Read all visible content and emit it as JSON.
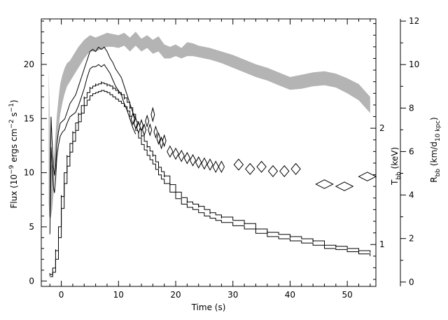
{
  "chart_data": {
    "type": "line",
    "xlabel": "Time (s)",
    "ylabel": "Flux (10",
    "ylabel_exp1": "−9",
    "ylabel_mid": " ergs cm",
    "ylabel_exp2": "−2",
    "ylabel_mid2": " s",
    "ylabel_exp3": "−1",
    "ylabel_end": ")",
    "tbb_label": "T",
    "tbb_sub": "bb",
    "tbb_unit": " (keV)",
    "rbb_label": "R",
    "rbb_sub": "bb",
    "rbb_unit_open": " (km/d",
    "rbb_unit_sub": "10 kpc",
    "rbb_unit_close": ")",
    "xlim": [
      -3.5,
      55
    ],
    "ylim_flux": [
      -0.5,
      24.2
    ],
    "ylim_tbb": [
      0.64,
      2.94
    ],
    "ylim_rbb": [
      -0.2,
      12.1
    ],
    "x_ticks": [
      0,
      10,
      20,
      30,
      40,
      50
    ],
    "flux_ticks": [
      0,
      5,
      10,
      15,
      20
    ],
    "tbb_ticks": [
      1,
      2
    ],
    "rbb_ticks": [
      0,
      2,
      4,
      6,
      8,
      10,
      12
    ],
    "colors": {
      "temperature_band": "#b4b4b4",
      "line": "#000000",
      "background": "#ffffff"
    },
    "flux": {
      "x": [
        -2.0,
        -1.5,
        -1.0,
        -0.5,
        0.0,
        0.5,
        1.0,
        1.5,
        2.0,
        2.5,
        3.0,
        3.5,
        4.0,
        4.5,
        5.0,
        5.5,
        6.0,
        6.5,
        7.0,
        7.5,
        8.0,
        8.5,
        9.0,
        9.5,
        10.0,
        10.5,
        11.0,
        11.5,
        12.0,
        12.5,
        13.0,
        13.5,
        14.0,
        14.5,
        15.0,
        15.5,
        16.0,
        16.5,
        17.0,
        17.5,
        18.0,
        19.0,
        20.0,
        21.0,
        22.0,
        23.0,
        24.0,
        25.0,
        26.0,
        27.0,
        28.0,
        30.0,
        32.0,
        34.0,
        36.0,
        38.0,
        40.0,
        42.0,
        44.0,
        46.0,
        48.0,
        50.0,
        52.0,
        54.0
      ],
      "upper": [
        0.6,
        1.2,
        2.8,
        5.0,
        7.8,
        10.0,
        11.5,
        12.7,
        13.7,
        14.6,
        15.4,
        16.2,
        16.9,
        17.4,
        17.8,
        18.0,
        18.1,
        18.2,
        18.3,
        18.2,
        18.1,
        18.0,
        17.8,
        17.6,
        17.4,
        17.2,
        16.9,
        16.5,
        16.0,
        15.4,
        14.7,
        14.0,
        13.4,
        12.9,
        12.4,
        12.0,
        11.6,
        11.0,
        10.5,
        10.1,
        9.7,
        8.9,
        8.2,
        7.7,
        7.3,
        7.1,
        6.9,
        6.6,
        6.3,
        6.1,
        5.9,
        5.6,
        5.3,
        4.8,
        4.5,
        4.3,
        4.1,
        3.9,
        3.7,
        3.3,
        3.2,
        3.0,
        2.8,
        2.6
      ],
      "lower": [
        0.4,
        0.8,
        2.0,
        4.0,
        6.7,
        9.0,
        10.6,
        11.9,
        12.9,
        13.9,
        14.7,
        15.5,
        16.2,
        16.7,
        17.1,
        17.3,
        17.4,
        17.5,
        17.6,
        17.5,
        17.4,
        17.2,
        17.0,
        16.8,
        16.6,
        16.4,
        16.1,
        15.7,
        15.2,
        14.6,
        13.9,
        13.2,
        12.6,
        12.1,
        11.6,
        11.2,
        10.8,
        10.3,
        9.8,
        9.4,
        9.0,
        8.2,
        7.6,
        7.1,
        6.8,
        6.6,
        6.3,
        6.0,
        5.8,
        5.6,
        5.4,
        5.1,
        4.8,
        4.4,
        4.1,
        3.9,
        3.7,
        3.5,
        3.3,
        3.0,
        2.9,
        2.7,
        2.5,
        2.3
      ]
    },
    "radius": {
      "x": [
        -2.0,
        -1.8,
        -1.6,
        -1.4,
        -1.2,
        -1.0,
        -0.8,
        -0.5,
        -0.2,
        0.2,
        0.6,
        1.0,
        1.5,
        2.0,
        2.5,
        3.0,
        3.5,
        4.0,
        4.5,
        5.0,
        5.5,
        6.0,
        6.5,
        7.0,
        7.5,
        8.0,
        8.5,
        9.0,
        9.5,
        10.0,
        10.5,
        11.0,
        11.5,
        12.0,
        12.5,
        13.0
      ],
      "upper": [
        3.0,
        7.6,
        6.4,
        5.3,
        4.9,
        5.3,
        6.3,
        6.9,
        7.3,
        7.4,
        7.5,
        7.8,
        8.2,
        8.4,
        8.6,
        9.0,
        9.4,
        9.8,
        10.2,
        10.6,
        10.7,
        10.6,
        10.8,
        10.7,
        10.8,
        10.6,
        10.3,
        10.1,
        9.8,
        9.6,
        9.4,
        9.0,
        8.6,
        8.2,
        7.8,
        7.5
      ],
      "lower": [
        2.2,
        6.2,
        5.3,
        4.4,
        4.1,
        4.7,
        5.7,
        6.3,
        6.7,
        6.9,
        7.0,
        7.3,
        7.6,
        7.7,
        7.8,
        8.1,
        8.5,
        8.9,
        9.4,
        9.8,
        9.9,
        9.9,
        10.0,
        9.9,
        10.0,
        9.8,
        9.6,
        9.3,
        9.0,
        8.8,
        8.6,
        8.2,
        7.9,
        7.5,
        7.1,
        6.8
      ]
    },
    "temperature": {
      "x": [
        -2.2,
        -2.0,
        -1.8,
        -1.6,
        -1.4,
        -1.2,
        -1.0,
        -0.8,
        -0.5,
        -0.2,
        0.2,
        0.6,
        1.0,
        1.5,
        2.0,
        2.5,
        3.0,
        3.5,
        4.0,
        4.5,
        5.0,
        5.5,
        6.0,
        7.0,
        8.0,
        9.0,
        10.0,
        11.0,
        12.0,
        13.0,
        14.0,
        15.0,
        16.0,
        17.0,
        18.0,
        19.0,
        20.0,
        21.0,
        22.0,
        23.0,
        24.0,
        25.0,
        26.0,
        28.0,
        30.0,
        32.0,
        34.0,
        36.0,
        38.0,
        40.0,
        42.0,
        44.0,
        46.0,
        48.0,
        50.0,
        52.0,
        54.0
      ],
      "upper": [
        2.52,
        2.0,
        1.7,
        1.65,
        1.72,
        1.8,
        1.95,
        2.1,
        2.25,
        2.38,
        2.46,
        2.52,
        2.56,
        2.58,
        2.62,
        2.66,
        2.7,
        2.73,
        2.76,
        2.78,
        2.8,
        2.79,
        2.78,
        2.8,
        2.82,
        2.81,
        2.8,
        2.82,
        2.78,
        2.83,
        2.77,
        2.8,
        2.76,
        2.79,
        2.72,
        2.7,
        2.72,
        2.69,
        2.74,
        2.73,
        2.71,
        2.7,
        2.69,
        2.66,
        2.63,
        2.59,
        2.55,
        2.52,
        2.48,
        2.44,
        2.46,
        2.48,
        2.49,
        2.47,
        2.43,
        2.38,
        2.27
      ],
      "lower": [
        1.35,
        1.2,
        1.24,
        1.3,
        1.42,
        1.55,
        1.7,
        1.85,
        2.0,
        2.12,
        2.22,
        2.3,
        2.36,
        2.4,
        2.44,
        2.48,
        2.52,
        2.56,
        2.6,
        2.63,
        2.66,
        2.66,
        2.66,
        2.68,
        2.7,
        2.7,
        2.69,
        2.71,
        2.66,
        2.71,
        2.66,
        2.69,
        2.64,
        2.66,
        2.6,
        2.6,
        2.62,
        2.6,
        2.62,
        2.62,
        2.61,
        2.6,
        2.59,
        2.56,
        2.52,
        2.48,
        2.44,
        2.41,
        2.37,
        2.33,
        2.34,
        2.36,
        2.37,
        2.35,
        2.3,
        2.24,
        2.13
      ]
    },
    "late_radius_points": [
      {
        "x": 12.5,
        "y": 7.5,
        "dx": 0.3,
        "dy": 0.25
      },
      {
        "x": 13.0,
        "y": 7.3,
        "dx": 0.3,
        "dy": 0.25
      },
      {
        "x": 13.5,
        "y": 7.1,
        "dx": 0.3,
        "dy": 0.25
      },
      {
        "x": 14.0,
        "y": 7.2,
        "dx": 0.3,
        "dy": 0.25
      },
      {
        "x": 14.5,
        "y": 7.0,
        "dx": 0.3,
        "dy": 0.25
      },
      {
        "x": 15.0,
        "y": 7.4,
        "dx": 0.3,
        "dy": 0.25
      },
      {
        "x": 15.5,
        "y": 7.0,
        "dx": 0.3,
        "dy": 0.25
      },
      {
        "x": 16.0,
        "y": 7.7,
        "dx": 0.3,
        "dy": 0.3
      },
      {
        "x": 16.5,
        "y": 6.9,
        "dx": 0.3,
        "dy": 0.25
      },
      {
        "x": 17.0,
        "y": 6.6,
        "dx": 0.3,
        "dy": 0.25
      },
      {
        "x": 17.5,
        "y": 6.4,
        "dx": 0.3,
        "dy": 0.25
      },
      {
        "x": 18.0,
        "y": 6.5,
        "dx": 0.3,
        "dy": 0.25
      },
      {
        "x": 19.0,
        "y": 6.0,
        "dx": 0.5,
        "dy": 0.25
      },
      {
        "x": 20.0,
        "y": 5.9,
        "dx": 0.5,
        "dy": 0.25
      },
      {
        "x": 21.0,
        "y": 5.8,
        "dx": 0.5,
        "dy": 0.25
      },
      {
        "x": 22.0,
        "y": 5.7,
        "dx": 0.5,
        "dy": 0.25
      },
      {
        "x": 23.0,
        "y": 5.6,
        "dx": 0.5,
        "dy": 0.25
      },
      {
        "x": 24.0,
        "y": 5.5,
        "dx": 0.5,
        "dy": 0.25
      },
      {
        "x": 25.0,
        "y": 5.45,
        "dx": 0.5,
        "dy": 0.25
      },
      {
        "x": 26.0,
        "y": 5.4,
        "dx": 0.5,
        "dy": 0.25
      },
      {
        "x": 27.0,
        "y": 5.3,
        "dx": 0.5,
        "dy": 0.25
      },
      {
        "x": 28.0,
        "y": 5.3,
        "dx": 0.5,
        "dy": 0.25
      },
      {
        "x": 31.0,
        "y": 5.4,
        "dx": 0.8,
        "dy": 0.25
      },
      {
        "x": 33.0,
        "y": 5.2,
        "dx": 0.8,
        "dy": 0.25
      },
      {
        "x": 35.0,
        "y": 5.3,
        "dx": 0.8,
        "dy": 0.25
      },
      {
        "x": 37.0,
        "y": 5.1,
        "dx": 0.8,
        "dy": 0.25
      },
      {
        "x": 39.0,
        "y": 5.1,
        "dx": 0.8,
        "dy": 0.25
      },
      {
        "x": 41.0,
        "y": 5.2,
        "dx": 0.8,
        "dy": 0.25
      },
      {
        "x": 46.0,
        "y": 4.5,
        "dx": 1.5,
        "dy": 0.2
      },
      {
        "x": 49.5,
        "y": 4.4,
        "dx": 1.5,
        "dy": 0.2
      },
      {
        "x": 53.5,
        "y": 4.85,
        "dx": 1.5,
        "dy": 0.2
      }
    ]
  }
}
